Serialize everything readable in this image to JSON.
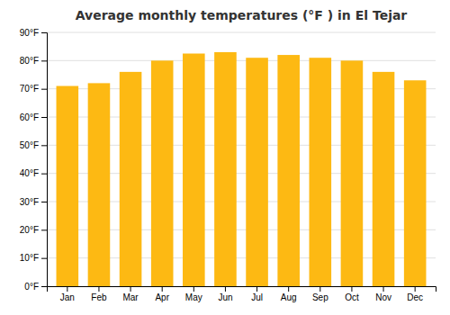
{
  "chart_data": {
    "type": "bar",
    "title": "Average monthly temperatures (°F ) in El Tejar",
    "categories": [
      "Jan",
      "Feb",
      "Mar",
      "Apr",
      "May",
      "Jun",
      "Jul",
      "Aug",
      "Sep",
      "Oct",
      "Nov",
      "Dec"
    ],
    "values": [
      71,
      72,
      76,
      80,
      82.5,
      83,
      81,
      82,
      81,
      80,
      76,
      73
    ],
    "color": "#FDB913",
    "ylim": [
      0,
      90
    ],
    "yticks": [
      {
        "value": 0,
        "label": "0°F"
      },
      {
        "value": 10,
        "label": "10°F"
      },
      {
        "value": 20,
        "label": "20°F"
      },
      {
        "value": 30,
        "label": "30°F"
      },
      {
        "value": 40,
        "label": "40°F"
      },
      {
        "value": 50,
        "label": "50°F"
      },
      {
        "value": 60,
        "label": "60°F"
      },
      {
        "value": 70,
        "label": "70°F"
      },
      {
        "value": 80,
        "label": "80°F"
      },
      {
        "value": 90,
        "label": "90°F"
      }
    ],
    "grid": true
  }
}
